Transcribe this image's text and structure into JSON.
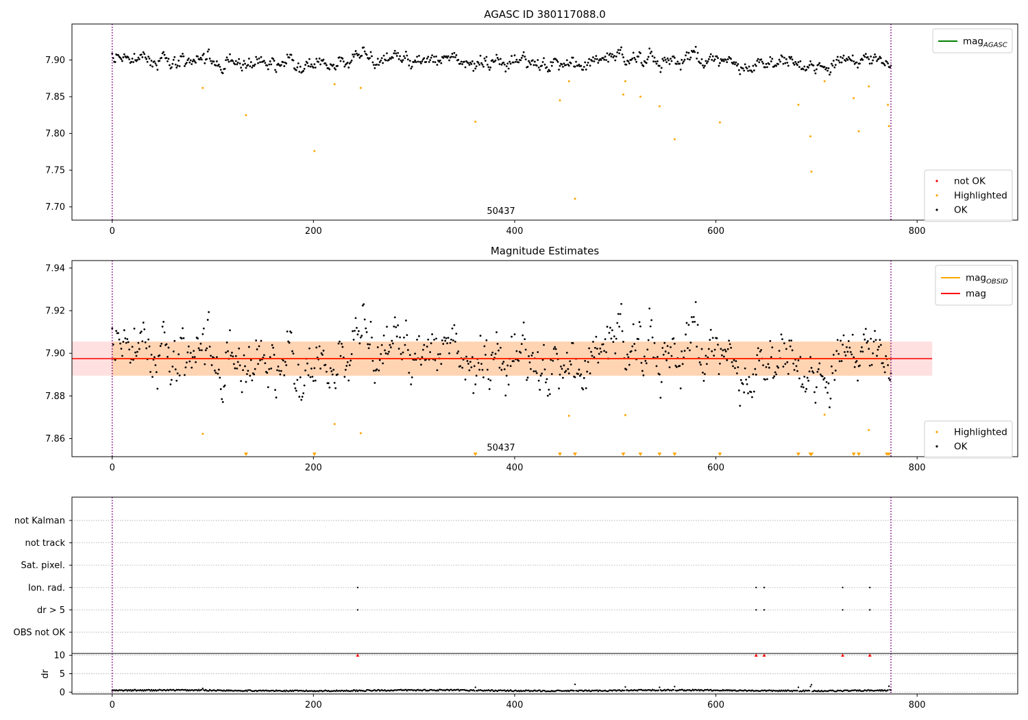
{
  "figure": {
    "background": "#ffffff"
  },
  "colors": {
    "ok": "#000000",
    "highlighted": "#ffa500",
    "not_ok": "#ff0000",
    "agasc_line": "#008000",
    "obsid_line": "#ffa500",
    "mag_line": "#ff0000",
    "obs_marker": "#800080",
    "grid": "#b0b0b0"
  },
  "chart_data": [
    {
      "id": "agasc",
      "type": "scatter",
      "title": "AGASC ID 380117088.0",
      "xticks": [
        0,
        200,
        400,
        600,
        800
      ],
      "yticks": [
        "7.70",
        "7.75",
        "7.80",
        "7.85",
        "7.90"
      ],
      "xlim": [
        -40,
        900
      ],
      "ylim": [
        7.682,
        7.949
      ],
      "vlines": [
        0,
        774
      ],
      "obsid_label": "50437",
      "obsid_label_x": 387,
      "ok_points": {
        "n": 775,
        "base": 7.898,
        "noise": 0.0052
      },
      "highlighted": [
        [
          90,
          7.862
        ],
        [
          133,
          7.825
        ],
        [
          201,
          7.776
        ],
        [
          221,
          7.867
        ],
        [
          247,
          7.862
        ],
        [
          361,
          7.816
        ],
        [
          445,
          7.845
        ],
        [
          454,
          7.871
        ],
        [
          460,
          7.711
        ],
        [
          508,
          7.853
        ],
        [
          510,
          7.871
        ],
        [
          525,
          7.85
        ],
        [
          544,
          7.837
        ],
        [
          559,
          7.792
        ],
        [
          604,
          7.815
        ],
        [
          682,
          7.839
        ],
        [
          694,
          7.796
        ],
        [
          695,
          7.748
        ],
        [
          708,
          7.871
        ],
        [
          737,
          7.848
        ],
        [
          742,
          7.803
        ],
        [
          752,
          7.864
        ],
        [
          771,
          7.839
        ],
        [
          772,
          7.81
        ]
      ],
      "legend_lines": [
        {
          "label": "mag",
          "sub": "AGASC",
          "color": "#008000"
        }
      ],
      "legend_points": [
        {
          "label": "not OK",
          "color": "#ff0000"
        },
        {
          "label": "Highlighted",
          "color": "#ffa500"
        },
        {
          "label": "OK",
          "color": "#000000"
        }
      ]
    },
    {
      "id": "estimates",
      "type": "scatter",
      "title": "Magnitude Estimates",
      "xticks": [
        0,
        200,
        400,
        600,
        800
      ],
      "yticks": [
        "7.86",
        "7.88",
        "7.90",
        "7.92",
        "7.94"
      ],
      "xlim": [
        -40,
        900
      ],
      "ylim": [
        7.8515,
        7.9435
      ],
      "vlines": [
        0,
        774
      ],
      "obsid_label": "50437",
      "obsid_label_x": 387,
      "mag": 7.8975,
      "mag_span": [
        -40,
        815
      ],
      "band_outer": [
        7.8895,
        7.9055
      ],
      "band_inner": [
        7.8895,
        7.9055
      ],
      "ok_points": {
        "n": 775,
        "base": 7.898,
        "noise": 0.0068
      },
      "highlighted": [
        [
          90,
          7.8622
        ],
        [
          221,
          7.8668
        ],
        [
          247,
          7.8625
        ],
        [
          454,
          7.8707
        ],
        [
          510,
          7.871
        ],
        [
          708,
          7.8712
        ],
        [
          752,
          7.864
        ]
      ],
      "below_markers": [
        133,
        201,
        361,
        445,
        460,
        508,
        525,
        544,
        559,
        604,
        682,
        694,
        695,
        737,
        742,
        770,
        772
      ],
      "legend_lines": [
        {
          "label": "mag",
          "sub": "OBSID",
          "color": "#ffa500"
        },
        {
          "label": "mag",
          "sub": "",
          "color": "#ff0000"
        }
      ],
      "legend_points": [
        {
          "label": "Highlighted",
          "color": "#ffa500"
        },
        {
          "label": "OK",
          "color": "#000000"
        }
      ]
    },
    {
      "id": "flags",
      "type": "scatter",
      "xticks": [
        0,
        200,
        400,
        600,
        800
      ],
      "xlim": [
        -40,
        900
      ],
      "vlines": [
        0,
        774
      ],
      "categories": [
        "not Kalman",
        "not track",
        "Sat. pixel.",
        "Ion. rad.",
        "dr > 5",
        "OBS not OK"
      ],
      "flag_points": {
        "Ion. rad.": [
          244,
          640,
          648,
          726,
          753
        ],
        "dr > 5": [
          244,
          640,
          648,
          726,
          753
        ]
      }
    },
    {
      "id": "dr",
      "type": "scatter",
      "ylabel": "dr",
      "xticks": [
        0,
        200,
        400,
        600,
        800
      ],
      "yticks": [
        "0",
        "5",
        "10"
      ],
      "xlim": [
        -40,
        900
      ],
      "ylim": [
        -0.5,
        10.5
      ],
      "vlines": [
        0,
        774
      ],
      "red_markers": [
        244,
        640,
        648,
        726,
        753
      ],
      "spikes": [
        [
          90,
          1.0
        ],
        [
          361,
          1.3
        ],
        [
          460,
          2.1
        ],
        [
          510,
          1.4
        ],
        [
          544,
          1.3
        ],
        [
          559,
          1.5
        ],
        [
          682,
          1.3
        ],
        [
          694,
          1.5
        ],
        [
          695,
          2.0
        ],
        [
          772,
          1.6
        ]
      ]
    }
  ]
}
